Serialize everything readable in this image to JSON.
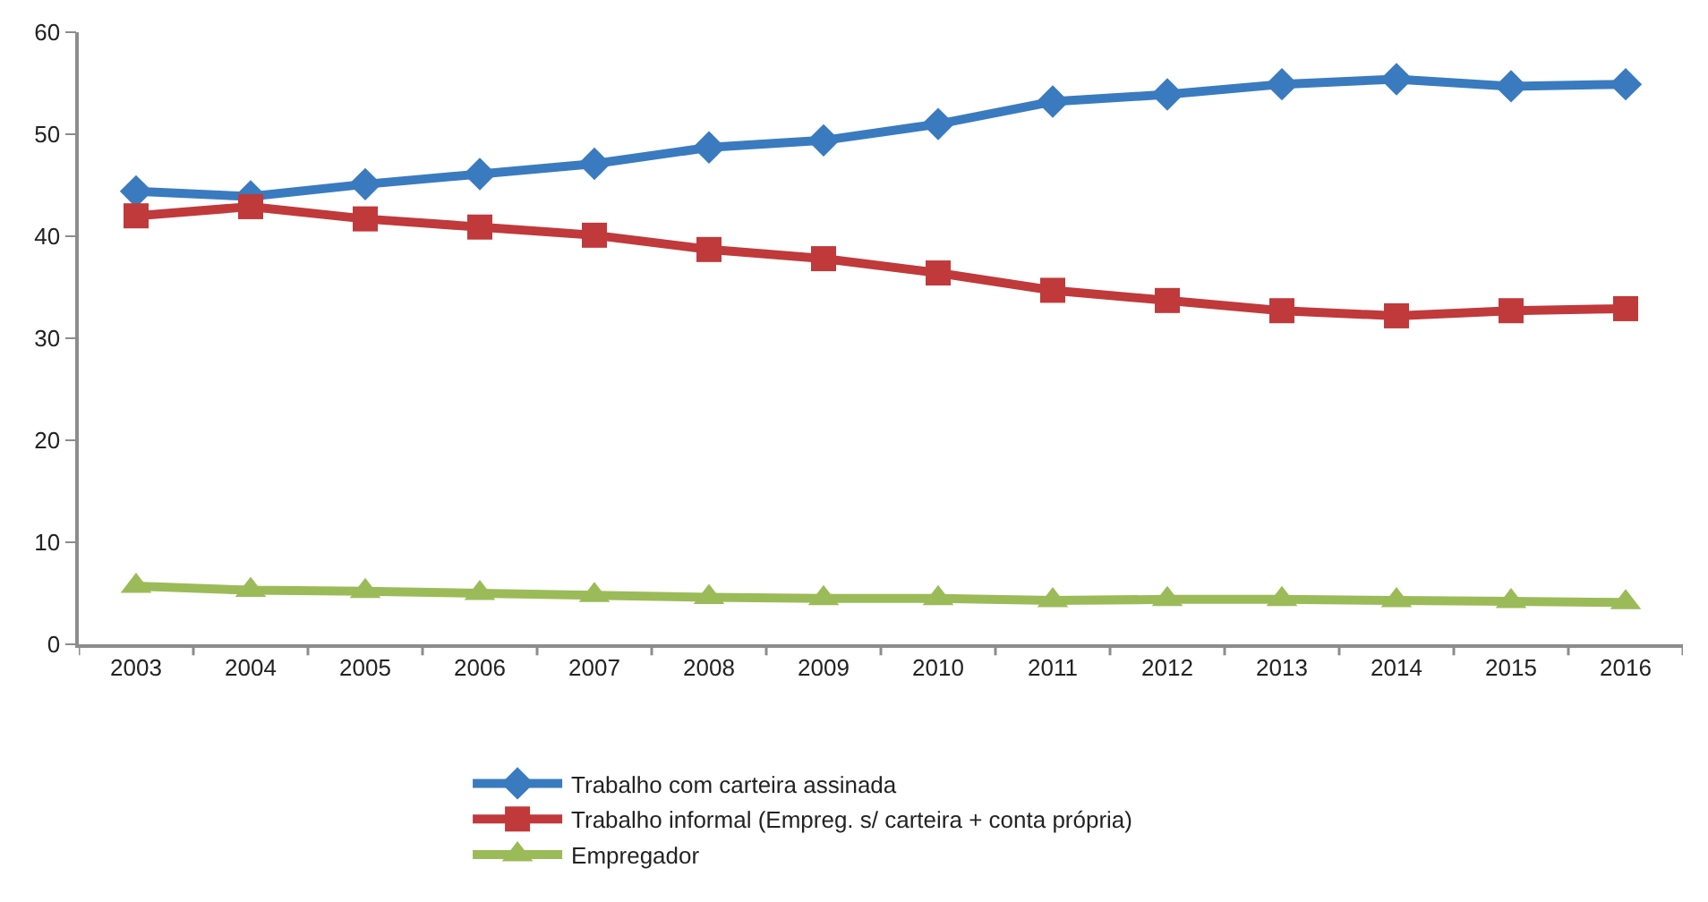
{
  "chart_data": {
    "type": "line",
    "categories": [
      "2003",
      "2004",
      "2005",
      "2006",
      "2007",
      "2008",
      "2009",
      "2010",
      "2011",
      "2012",
      "2013",
      "2014",
      "2015",
      "2016"
    ],
    "series": [
      {
        "name": "Trabalho com carteira assinada",
        "color": "#3a7bbf",
        "marker": "diamond",
        "values": [
          44.4,
          43.9,
          45.1,
          46.1,
          47.1,
          48.7,
          49.4,
          51.0,
          53.2,
          53.9,
          54.9,
          55.4,
          54.7,
          54.9
        ]
      },
      {
        "name": "Trabalho informal (Empreg. s/ carteira + conta própria)",
        "color": "#c0393b",
        "marker": "square",
        "values": [
          42.0,
          42.9,
          41.7,
          40.9,
          40.1,
          38.7,
          37.8,
          36.4,
          34.7,
          33.7,
          32.7,
          32.2,
          32.7,
          32.9
        ]
      },
      {
        "name": "Empregador",
        "color": "#9bbb59",
        "marker": "triangle",
        "values": [
          5.7,
          5.3,
          5.2,
          5.0,
          4.8,
          4.6,
          4.5,
          4.5,
          4.3,
          4.4,
          4.4,
          4.3,
          4.2,
          4.1
        ]
      }
    ],
    "ylim": [
      0,
      60
    ],
    "yticks": [
      0,
      10,
      20,
      30,
      40,
      50,
      60
    ],
    "grid": false,
    "legend": "bottom",
    "line_style": "solid"
  }
}
